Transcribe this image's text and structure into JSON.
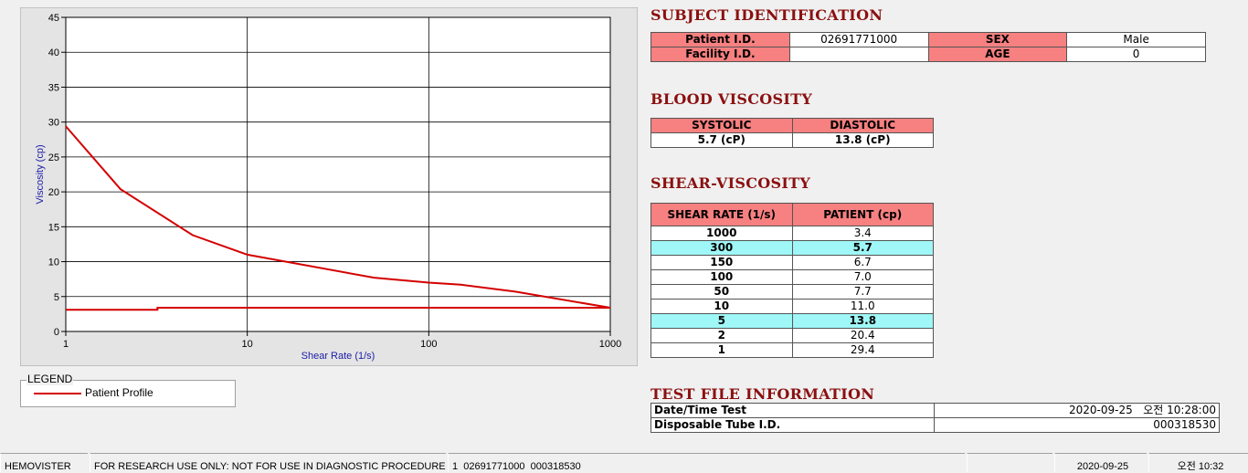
{
  "chart_data": {
    "type": "line",
    "xlabel": "Shear Rate (1/s)",
    "ylabel": "Viscosity (cp)",
    "xscale": "log",
    "xlim": [
      1,
      1000
    ],
    "xticks": [
      1,
      10,
      100,
      1000
    ],
    "ylim": [
      0,
      45
    ],
    "yticks": [
      0,
      5,
      10,
      15,
      20,
      25,
      30,
      35,
      40,
      45
    ],
    "grid": true,
    "legend_title": "LEGEND",
    "series": [
      {
        "name": "Patient Profile",
        "color": "#d40000",
        "x": [
          1,
          2,
          5,
          10,
          50,
          100,
          150,
          300,
          1000
        ],
        "values": [
          29.4,
          20.4,
          13.8,
          11.0,
          7.7,
          7.0,
          6.7,
          5.7,
          3.4
        ]
      },
      {
        "color": "#d40000",
        "x": [
          1,
          3.2,
          3.2,
          1000
        ],
        "values": [
          3.1,
          3.1,
          3.4,
          3.4
        ]
      }
    ]
  },
  "subject": {
    "title": "SUBJECT IDENTIFICATION",
    "rows": [
      [
        "Patient I.D.",
        "02691771000",
        "SEX",
        "Male"
      ],
      [
        "Facility I.D.",
        null,
        "AGE",
        "0"
      ]
    ]
  },
  "blood": {
    "title": "BLOOD VISCOSITY",
    "headers": [
      "SYSTOLIC",
      "DIASTOLIC"
    ],
    "values": [
      "5.7 (cP)",
      "13.8 (cP)"
    ]
  },
  "shear": {
    "title": "SHEAR-VISCOSITY",
    "headers": [
      "SHEAR RATE (1/s)",
      "PATIENT (cp)"
    ],
    "rows": [
      {
        "cells": [
          "1000",
          "3.4"
        ]
      },
      {
        "cells": [
          "300",
          "5.7"
        ],
        "highlight": true
      },
      {
        "cells": [
          "150",
          "6.7"
        ]
      },
      {
        "cells": [
          "100",
          "7.0"
        ]
      },
      {
        "cells": [
          "50",
          "7.7"
        ]
      },
      {
        "cells": [
          "10",
          "11.0"
        ]
      },
      {
        "cells": [
          "5",
          "13.8"
        ],
        "highlight": true
      },
      {
        "cells": [
          "2",
          "20.4"
        ]
      },
      {
        "cells": [
          "1",
          "29.4"
        ]
      }
    ]
  },
  "test_file": {
    "title": "TEST FILE INFORMATION",
    "rows": [
      [
        "Date/Time Test",
        "2020-09-25   오전 10:28:00"
      ],
      [
        "Disposable Tube I.D.",
        "000318530"
      ]
    ]
  },
  "status_bar": [
    "HEMOVISTER",
    "FOR RESEARCH USE ONLY: NOT FOR USE IN DIAGNOSTIC PROCEDURES",
    "1  02691771000  000318530",
    null,
    "2020-09-25",
    "오전 10:32"
  ]
}
